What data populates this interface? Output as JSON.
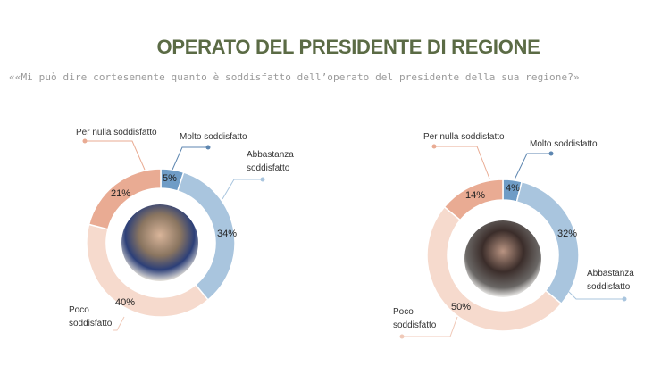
{
  "title": "OPERATO DEL PRESIDENTE DI REGIONE",
  "subtitle": "««Mi può dire cortesemente quanto è soddisfatto dell’operato del presidente della sua regione?»",
  "colors": {
    "molto": "#6f9cc6",
    "abbastanza": "#a9c5de",
    "poco": "#f6dacd",
    "per_nulla": "#e9ab93",
    "title": "#5b6b45"
  },
  "chart_data": [
    {
      "type": "pie",
      "variant": "donut",
      "categories": [
        "Molto soddisfatto",
        "Abbastanza soddisfatto",
        "Poco soddisfatto",
        "Per nulla soddisfatto"
      ],
      "values": [
        5,
        34,
        40,
        21
      ],
      "labels": [
        "5%",
        "34%",
        "40%",
        "21%"
      ],
      "center_image": "photo"
    },
    {
      "type": "pie",
      "variant": "donut",
      "categories": [
        "Molto soddisfatto",
        "Abbastanza soddisfatto",
        "Poco soddisfatto",
        "Per nulla soddisfatto"
      ],
      "values": [
        4,
        32,
        50,
        14
      ],
      "labels": [
        "4%",
        "32%",
        "50%",
        "14%"
      ],
      "center_image": "photo"
    }
  ],
  "legend_text": {
    "molto": "Molto soddisfatto",
    "abbastanza_1": "Abbastanza",
    "abbastanza_2": "soddisfatto",
    "poco_1": "Poco",
    "poco_2": "soddisfatto",
    "per_nulla": "Per nulla soddisfatto"
  }
}
